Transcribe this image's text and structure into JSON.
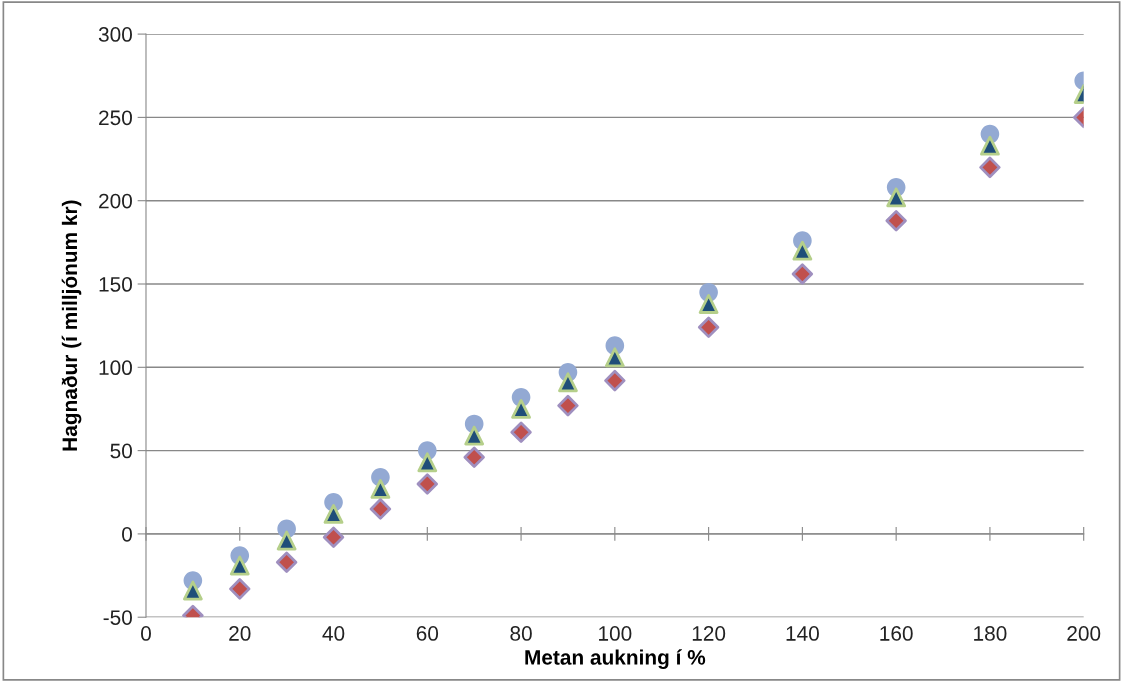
{
  "chart_data": {
    "type": "scatter",
    "xlabel": "Metan aukning í %",
    "ylabel": "Hagnaður (í milljónum kr)",
    "x": [
      10,
      20,
      30,
      40,
      50,
      60,
      70,
      80,
      90,
      100,
      120,
      140,
      160,
      180,
      200
    ],
    "series": [
      {
        "color": "#93a9d3",
        "marker": "circle",
        "values": [
          -28,
          -13,
          3,
          19,
          34,
          50,
          66,
          82,
          97,
          113,
          145,
          176,
          208,
          240,
          272
        ]
      },
      {
        "color": "#1f4e79",
        "marker": "triangle",
        "values": [
          -34,
          -19,
          -4,
          12,
          27,
          43,
          59,
          75,
          91,
          106,
          138,
          170,
          202,
          233,
          264
        ]
      },
      {
        "color": "#c0504d",
        "marker": "diamond",
        "values": [
          -49,
          -33,
          -17,
          -2,
          15,
          30,
          46,
          61,
          77,
          92,
          124,
          156,
          188,
          220,
          250
        ]
      }
    ],
    "xlim": [
      0,
      200
    ],
    "xticks": [
      0,
      20,
      40,
      60,
      80,
      100,
      120,
      140,
      160,
      180,
      200
    ],
    "ylim": [
      -50,
      300
    ],
    "yticks": [
      -50,
      0,
      50,
      100,
      150,
      200,
      250,
      300
    ],
    "grid": "y"
  }
}
